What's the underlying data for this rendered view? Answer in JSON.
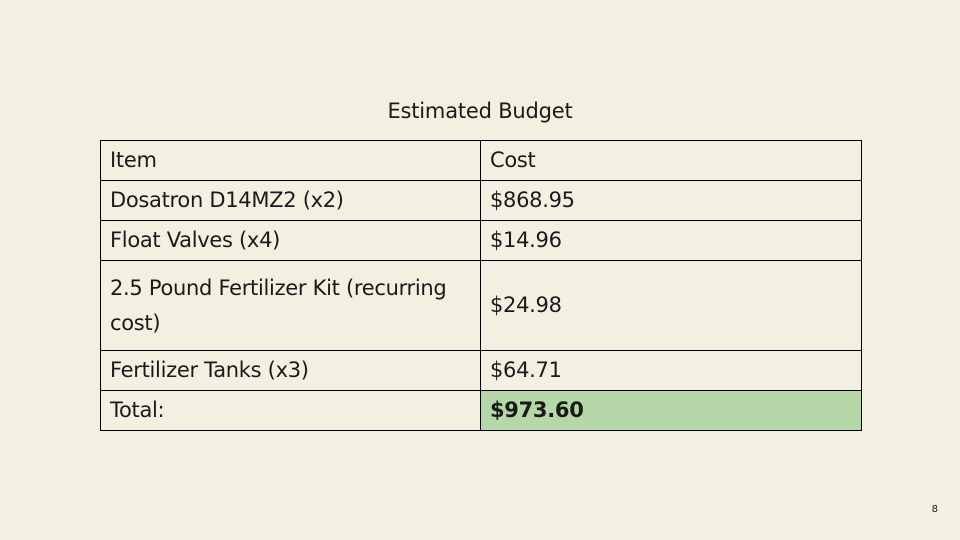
{
  "slide": {
    "title": "Estimated Budget",
    "page_number": "8"
  },
  "table": {
    "header": {
      "item": "Item",
      "cost": "Cost"
    },
    "rows": [
      {
        "item": "Dosatron D14MZ2 (x2)",
        "cost": "$868.95"
      },
      {
        "item": "Float Valves (x4)",
        "cost": "$14.96"
      },
      {
        "item": "2.5 Pound Fertilizer Kit (recurring cost)",
        "cost": "$24.98"
      },
      {
        "item": "Fertilizer Tanks (x3)",
        "cost": "$64.71"
      }
    ],
    "total": {
      "label": "Total:",
      "cost": "$973.60"
    }
  },
  "colors": {
    "background": "#f3f0e1",
    "total_highlight": "#b6d7a8"
  }
}
